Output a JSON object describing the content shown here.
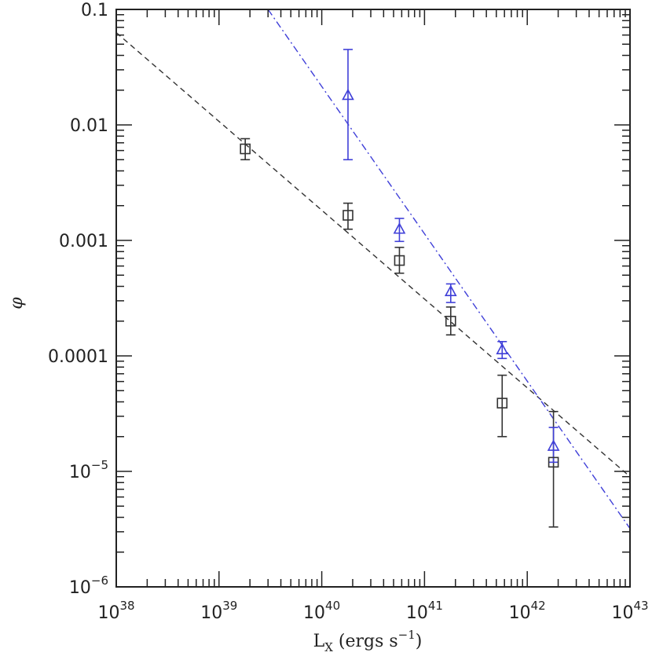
{
  "chart_data": {
    "type": "scatter",
    "title": "",
    "xlabel": "L_X (ergs s^-1)",
    "xlabel_parts": {
      "main": "L",
      "sub": "X",
      "rest": " (ergs s",
      "sup": "−1",
      "close": ")"
    },
    "ylabel": "φ",
    "xscale": "log",
    "yscale": "log",
    "xlim": [
      1e+38,
      1e+43
    ],
    "ylim": [
      1e-06,
      0.1
    ],
    "x_ticks": [
      {
        "value": 1e+38,
        "base": "10",
        "exp": "38"
      },
      {
        "value": 1e+39,
        "base": "10",
        "exp": "39"
      },
      {
        "value": 1e+40,
        "base": "10",
        "exp": "40"
      },
      {
        "value": 1e+41,
        "base": "10",
        "exp": "41"
      },
      {
        "value": 1e+42,
        "base": "10",
        "exp": "42"
      },
      {
        "value": 1e+43,
        "base": "10",
        "exp": "43"
      }
    ],
    "y_ticks": [
      {
        "value": 0.1,
        "label": "0.1"
      },
      {
        "value": 0.01,
        "label": "0.01"
      },
      {
        "value": 0.001,
        "label": "0.001"
      },
      {
        "value": 0.0001,
        "label": "0.0001"
      },
      {
        "value": 1e-05,
        "base": "10",
        "exp": "−5"
      },
      {
        "value": 1e-06,
        "base": "10",
        "exp": "−6"
      }
    ],
    "grid": false,
    "series": [
      {
        "marker": "square",
        "color": "#333333",
        "points": [
          {
            "x": 1.8e+39,
            "y": 0.0062,
            "ylo": 0.005,
            "yhi": 0.0076
          },
          {
            "x": 1.8e+40,
            "y": 0.00165,
            "ylo": 0.00125,
            "yhi": 0.0021
          },
          {
            "x": 5.7e+40,
            "y": 0.00067,
            "ylo": 0.00052,
            "yhi": 0.00087
          },
          {
            "x": 1.8e+41,
            "y": 0.0002,
            "ylo": 0.000152,
            "yhi": 0.000265
          },
          {
            "x": 5.7e+41,
            "y": 3.9e-05,
            "ylo": 2e-05,
            "yhi": 6.8e-05
          },
          {
            "x": 1.8e+42,
            "y": 1.2e-05,
            "ylo": 3.3e-06,
            "yhi": 3.3e-05
          }
        ],
        "fit": {
          "x": [
            1e+38,
            1e+43
          ],
          "y": [
            0.063,
            9e-06
          ],
          "dash": "7,5"
        }
      },
      {
        "marker": "triangle",
        "color": "#3f3fd8",
        "points": [
          {
            "x": 1.8e+40,
            "y": 0.018,
            "ylo": 0.005,
            "yhi": 0.045
          },
          {
            "x": 5.7e+40,
            "y": 0.00125,
            "ylo": 0.00098,
            "yhi": 0.00155
          },
          {
            "x": 1.8e+41,
            "y": 0.00036,
            "ylo": 0.00029,
            "yhi": 0.00042
          },
          {
            "x": 5.7e+41,
            "y": 0.000113,
            "ylo": 9.5e-05,
            "yhi": 0.000133
          },
          {
            "x": 1.8e+42,
            "y": 1.65e-05,
            "ylo": 1.2e-05,
            "yhi": 2.4e-05
          }
        ],
        "fit": {
          "x": [
            3e+39,
            1e+43
          ],
          "y": [
            0.1,
            3.2e-06
          ],
          "dash": "9,4,2,4"
        }
      }
    ]
  }
}
